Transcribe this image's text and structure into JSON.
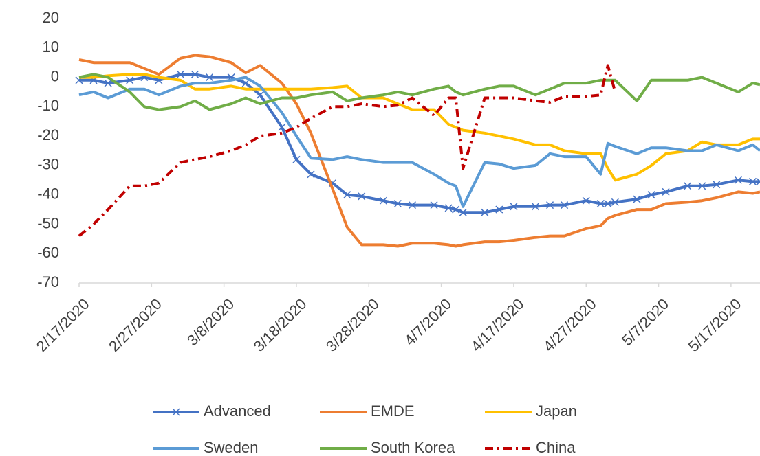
{
  "chart_data": {
    "type": "line",
    "x": [
      "2/17/2020",
      "2/19/2020",
      "2/21/2020",
      "2/24/2020",
      "2/26/2020",
      "2/28/2020",
      "3/2/2020",
      "3/4/2020",
      "3/6/2020",
      "3/9/2020",
      "3/11/2020",
      "3/13/2020",
      "3/16/2020",
      "3/18/2020",
      "3/20/2020",
      "3/23/2020",
      "3/25/2020",
      "3/27/2020",
      "3/30/2020",
      "4/1/2020",
      "4/3/2020",
      "4/6/2020",
      "4/8/2020",
      "4/9/2020",
      "4/10/2020",
      "4/13/2020",
      "4/15/2020",
      "4/17/2020",
      "4/20/2020",
      "4/22/2020",
      "4/24/2020",
      "4/27/2020",
      "4/29/2020",
      "4/30/2020",
      "5/1/2020",
      "5/4/2020",
      "5/6/2020",
      "5/8/2020",
      "5/11/2020",
      "5/13/2020",
      "5/15/2020",
      "5/18/2020",
      "5/20/2020",
      "5/21/2020"
    ],
    "series": [
      {
        "name": "Advanced",
        "color": "#4472c4",
        "marker": "x",
        "values": [
          -1,
          -1,
          -2,
          -1,
          0,
          -1,
          1,
          1,
          0,
          0,
          -2,
          -6,
          -17,
          -28,
          -33,
          -36,
          -40,
          -40.5,
          -42,
          -43,
          -43.5,
          -43.5,
          -44.5,
          -45,
          -46,
          -46,
          -45,
          -44,
          -44,
          -43.5,
          -43.5,
          -42,
          -43,
          -43,
          -42.5,
          -41.5,
          -40,
          -39,
          -37,
          -37,
          -36.5,
          -35,
          -35.5,
          -35.5
        ]
      },
      {
        "name": "EMDE",
        "color": "#ed7d31",
        "values": [
          6,
          5,
          5,
          5,
          3,
          1,
          6.5,
          7.5,
          7,
          5,
          1.5,
          4,
          -2,
          -9,
          -19,
          -38,
          -51,
          -57,
          -57,
          -57.5,
          -56.5,
          -56.5,
          -57,
          -57.5,
          -57,
          -56,
          -56,
          -55.5,
          -54.5,
          -54,
          -54,
          -51.5,
          -50.5,
          -48,
          -47,
          -45,
          -45,
          -43,
          -42.5,
          -42,
          -41,
          -39,
          -39.5,
          -39
        ]
      },
      {
        "name": "Japan",
        "color": "#ffc000",
        "values": [
          0,
          0,
          0.5,
          1,
          1,
          0,
          -1,
          -4,
          -4,
          -3,
          -4,
          -4,
          -4,
          -4,
          -4,
          -3.5,
          -3,
          -7,
          -7,
          -9,
          -11,
          -11,
          -16,
          -17,
          -18,
          -19,
          -20,
          -21,
          -23,
          -23,
          -25,
          -26,
          -26,
          -31,
          -35,
          -33,
          -30,
          -26,
          -25,
          -22,
          -23,
          -23,
          -21,
          -21
        ]
      },
      {
        "name": "Sweden",
        "color": "#5b9bd5",
        "values": [
          -6,
          -5,
          -7,
          -4,
          -4,
          -6,
          -3,
          -2,
          -2,
          -1,
          0,
          -3,
          -12,
          -20,
          -27.5,
          -28,
          -27,
          -28,
          -29,
          -29,
          -29,
          -33,
          -36,
          -37,
          -44,
          -29,
          -29.5,
          -31,
          -30,
          -26,
          -27,
          -27,
          -33,
          -22.5,
          -23.5,
          -26,
          -24,
          -24,
          -25,
          -25,
          -23,
          -25,
          -23,
          -25
        ]
      },
      {
        "name": "South Korea",
        "color": "#70ad47",
        "values": [
          0,
          1,
          0,
          -5,
          -10,
          -11,
          -10,
          -8,
          -11,
          -9,
          -7,
          -9,
          -7,
          -7,
          -6,
          -5,
          -8,
          -7,
          -6,
          -5,
          -6,
          -4,
          -3,
          -5,
          -6,
          -4,
          -3,
          -3,
          -6,
          -4,
          -2,
          -2,
          -1,
          -1,
          -1,
          -8,
          -1,
          -1,
          -1,
          0,
          -2,
          -5,
          -2,
          -2.5
        ]
      },
      {
        "name": "China",
        "color": "#c00000",
        "line_style": "dashdot",
        "values": [
          -54,
          -50,
          -45,
          -37,
          -37,
          -36,
          -29,
          -28,
          -27,
          -25,
          -23,
          -20,
          -19,
          -17,
          -14,
          -10,
          -10,
          -9,
          -10,
          -9.5,
          -7,
          -13,
          -7,
          -7,
          -31,
          -7,
          -7,
          -7,
          -8,
          -8.5,
          -6.5,
          -6.5,
          -6,
          4,
          -5,
          null,
          null,
          null,
          null,
          null,
          null,
          null,
          null,
          null
        ]
      }
    ],
    "xlim": [
      "2/17/2020",
      "5/21/2020"
    ],
    "xticks": [
      "2/17/2020",
      "2/27/2020",
      "3/8/2020",
      "3/18/2020",
      "3/28/2020",
      "4/7/2020",
      "4/17/2020",
      "4/27/2020",
      "5/7/2020",
      "5/17/2020"
    ],
    "ylim": [
      -70,
      20
    ],
    "yticks": [
      -70,
      -60,
      -50,
      -40,
      -30,
      -20,
      -10,
      0,
      10,
      20
    ],
    "grid": false,
    "legend": "bottom"
  }
}
